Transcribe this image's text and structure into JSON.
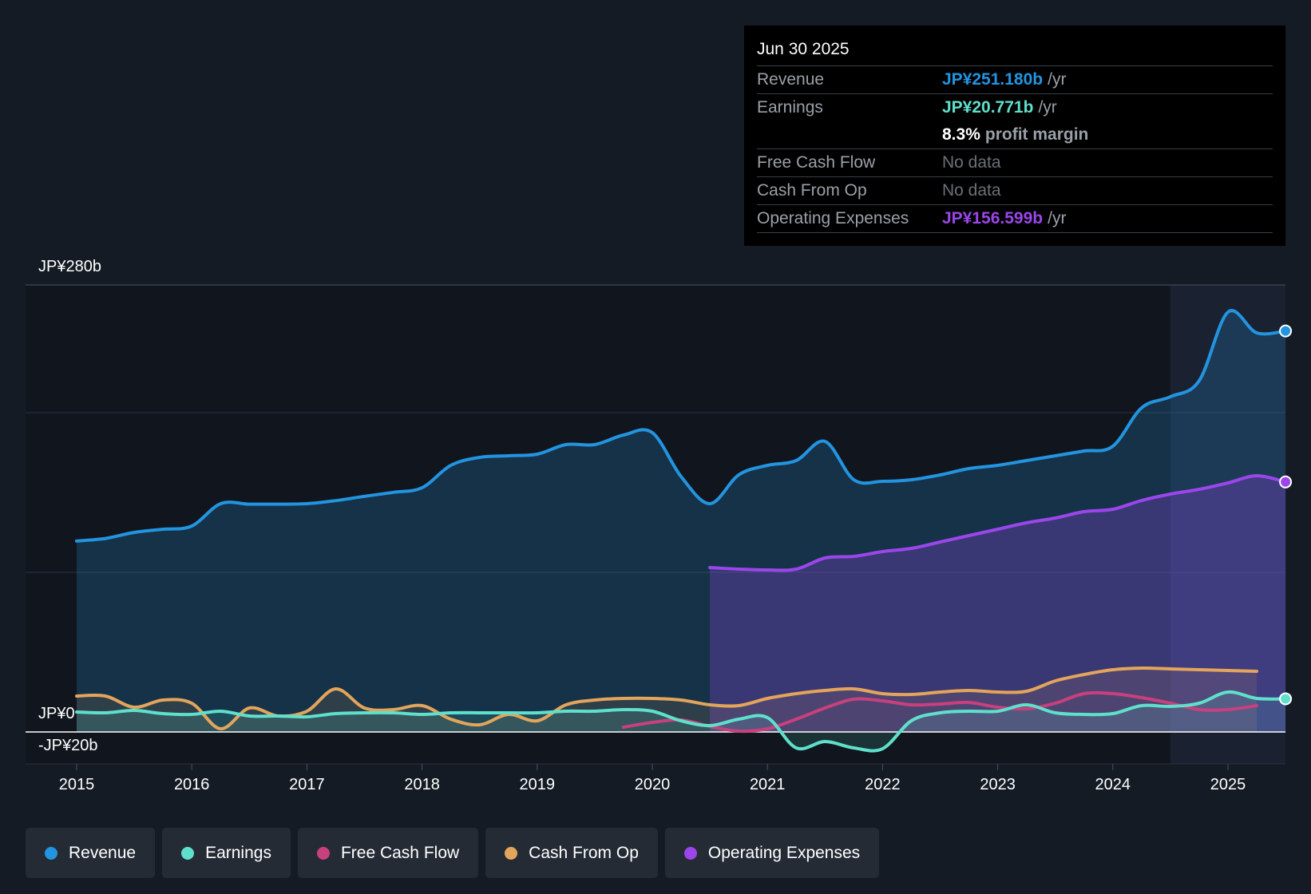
{
  "tooltip": {
    "date": "Jun 30 2025",
    "revenue_label": "Revenue",
    "revenue_value": "JP¥251.180b",
    "earnings_label": "Earnings",
    "earnings_value": "JP¥20.771b",
    "margin_value": "8.3%",
    "margin_text": "profit margin",
    "fcf_label": "Free Cash Flow",
    "fcf_value": "No data",
    "cfo_label": "Cash From Op",
    "cfo_value": "No data",
    "opex_label": "Operating Expenses",
    "opex_value": "JP¥156.599b",
    "unit": "/yr"
  },
  "legend": [
    {
      "label": "Revenue",
      "color": "#2394e0"
    },
    {
      "label": "Earnings",
      "color": "#5fe0cc"
    },
    {
      "label": "Free Cash Flow",
      "color": "#c8407e"
    },
    {
      "label": "Cash From Op",
      "color": "#e3a55b"
    },
    {
      "label": "Operating Expenses",
      "color": "#9b46ea"
    }
  ],
  "chart_data": {
    "type": "area",
    "title": "",
    "xlabel": "",
    "ylabel": "",
    "y_top_label": "JP¥280b",
    "y_zero_label": "JP¥0",
    "y_bottom_label": "-JP¥20b",
    "ylim": [
      -20,
      280
    ],
    "x_range": [
      2014.55,
      2025.5
    ],
    "x_ticks": [
      "2015",
      "2016",
      "2017",
      "2018",
      "2019",
      "2020",
      "2021",
      "2022",
      "2023",
      "2024",
      "2025"
    ],
    "forecast_start": 2024.5,
    "series": [
      {
        "name": "Revenue",
        "color": "#2394e0",
        "fill": true,
        "points": [
          [
            2015.0,
            119.6
          ],
          [
            2015.25,
            121.2
          ],
          [
            2015.5,
            125.0
          ],
          [
            2015.75,
            127.0
          ],
          [
            2016.0,
            129.0
          ],
          [
            2016.25,
            143.0
          ],
          [
            2016.5,
            142.7
          ],
          [
            2016.75,
            142.7
          ],
          [
            2017.0,
            143.0
          ],
          [
            2017.25,
            144.9
          ],
          [
            2017.5,
            147.6
          ],
          [
            2017.75,
            150.1
          ],
          [
            2018.0,
            153.0
          ],
          [
            2018.25,
            167.0
          ],
          [
            2018.5,
            172.0
          ],
          [
            2018.75,
            173.0
          ],
          [
            2019.0,
            174.0
          ],
          [
            2019.25,
            180.0
          ],
          [
            2019.5,
            180.0
          ],
          [
            2019.75,
            186.0
          ],
          [
            2020.0,
            187.5
          ],
          [
            2020.25,
            160.0
          ],
          [
            2020.5,
            143.0
          ],
          [
            2020.75,
            161.0
          ],
          [
            2021.0,
            167.0
          ],
          [
            2021.25,
            170.0
          ],
          [
            2021.5,
            182.0
          ],
          [
            2021.75,
            158.0
          ],
          [
            2022.0,
            157.0
          ],
          [
            2022.25,
            158.0
          ],
          [
            2022.5,
            161.0
          ],
          [
            2022.75,
            165.0
          ],
          [
            2023.0,
            167.0
          ],
          [
            2023.25,
            170.0
          ],
          [
            2023.5,
            173.0
          ],
          [
            2023.75,
            176.0
          ],
          [
            2024.0,
            179.0
          ],
          [
            2024.25,
            203.0
          ],
          [
            2024.5,
            210.0
          ],
          [
            2024.75,
            220.0
          ],
          [
            2025.0,
            263.0
          ],
          [
            2025.25,
            250.0
          ],
          [
            2025.5,
            251.18
          ]
        ]
      },
      {
        "name": "Operating Expenses",
        "color": "#9b46ea",
        "fill": true,
        "points": [
          [
            2020.5,
            103.0
          ],
          [
            2020.75,
            102.0
          ],
          [
            2021.0,
            101.5
          ],
          [
            2021.25,
            102.0
          ],
          [
            2021.5,
            109.0
          ],
          [
            2021.75,
            110.0
          ],
          [
            2022.0,
            113.0
          ],
          [
            2022.25,
            115.0
          ],
          [
            2022.5,
            119.0
          ],
          [
            2022.75,
            123.0
          ],
          [
            2023.0,
            127.0
          ],
          [
            2023.25,
            131.0
          ],
          [
            2023.5,
            134.0
          ],
          [
            2023.75,
            138.0
          ],
          [
            2024.0,
            139.5
          ],
          [
            2024.25,
            145.0
          ],
          [
            2024.5,
            149.0
          ],
          [
            2024.75,
            152.0
          ],
          [
            2025.0,
            156.0
          ],
          [
            2025.25,
            160.5
          ],
          [
            2025.5,
            156.6
          ]
        ]
      },
      {
        "name": "Cash From Op",
        "color": "#e3a55b",
        "fill": true,
        "points": [
          [
            2015.0,
            22.5
          ],
          [
            2015.25,
            22.5
          ],
          [
            2015.5,
            15.5
          ],
          [
            2015.75,
            20.0
          ],
          [
            2016.0,
            18.0
          ],
          [
            2016.25,
            2.0
          ],
          [
            2016.5,
            15.0
          ],
          [
            2016.75,
            10.0
          ],
          [
            2017.0,
            13.0
          ],
          [
            2017.25,
            27.0
          ],
          [
            2017.5,
            15.0
          ],
          [
            2017.75,
            14.0
          ],
          [
            2018.0,
            16.5
          ],
          [
            2018.25,
            8.0
          ],
          [
            2018.5,
            4.5
          ],
          [
            2018.75,
            11.0
          ],
          [
            2019.0,
            7.0
          ],
          [
            2019.25,
            17.0
          ],
          [
            2019.5,
            20.0
          ],
          [
            2019.75,
            21.0
          ],
          [
            2020.0,
            21.0
          ],
          [
            2020.25,
            20.0
          ],
          [
            2020.5,
            17.0
          ],
          [
            2020.75,
            16.5
          ],
          [
            2021.0,
            21.0
          ],
          [
            2021.25,
            24.0
          ],
          [
            2021.5,
            26.0
          ],
          [
            2021.75,
            27.0
          ],
          [
            2022.0,
            24.0
          ],
          [
            2022.25,
            23.5
          ],
          [
            2022.5,
            25.0
          ],
          [
            2022.75,
            26.0
          ],
          [
            2023.0,
            25.0
          ],
          [
            2023.25,
            25.5
          ],
          [
            2023.5,
            32.0
          ],
          [
            2023.75,
            36.0
          ],
          [
            2024.0,
            39.0
          ],
          [
            2024.25,
            40.0
          ],
          [
            2024.5,
            39.5
          ],
          [
            2024.75,
            39.0
          ],
          [
            2025.0,
            38.5
          ],
          [
            2025.25,
            38.0
          ]
        ]
      },
      {
        "name": "Earnings",
        "color": "#5fe0cc",
        "fill": true,
        "points": [
          [
            2015.0,
            12.5
          ],
          [
            2015.25,
            12.0
          ],
          [
            2015.5,
            13.5
          ],
          [
            2015.75,
            11.5
          ],
          [
            2016.0,
            11.0
          ],
          [
            2016.25,
            13.0
          ],
          [
            2016.5,
            10.0
          ],
          [
            2016.75,
            10.0
          ],
          [
            2017.0,
            9.5
          ],
          [
            2017.25,
            11.5
          ],
          [
            2017.5,
            12.0
          ],
          [
            2017.75,
            12.0
          ],
          [
            2018.0,
            11.0
          ],
          [
            2018.25,
            12.0
          ],
          [
            2018.5,
            12.0
          ],
          [
            2018.75,
            12.0
          ],
          [
            2019.0,
            12.0
          ],
          [
            2019.25,
            13.0
          ],
          [
            2019.5,
            13.0
          ],
          [
            2019.75,
            14.0
          ],
          [
            2020.0,
            13.0
          ],
          [
            2020.25,
            7.0
          ],
          [
            2020.5,
            4.0
          ],
          [
            2020.75,
            8.0
          ],
          [
            2021.0,
            9.0
          ],
          [
            2021.25,
            -10.0
          ],
          [
            2021.5,
            -6.0
          ],
          [
            2021.75,
            -10.0
          ],
          [
            2022.0,
            -10.5
          ],
          [
            2022.25,
            7.0
          ],
          [
            2022.5,
            12.0
          ],
          [
            2022.75,
            13.0
          ],
          [
            2023.0,
            13.0
          ],
          [
            2023.25,
            17.0
          ],
          [
            2023.5,
            12.0
          ],
          [
            2023.75,
            11.0
          ],
          [
            2024.0,
            11.5
          ],
          [
            2024.25,
            16.5
          ],
          [
            2024.5,
            16.0
          ],
          [
            2024.75,
            18.0
          ],
          [
            2025.0,
            25.0
          ],
          [
            2025.25,
            21.0
          ],
          [
            2025.5,
            20.77
          ]
        ]
      },
      {
        "name": "Free Cash Flow",
        "color": "#c8407e",
        "fill": false,
        "points": [
          [
            2019.75,
            3.0
          ],
          [
            2020.0,
            6.0
          ],
          [
            2020.25,
            7.5
          ],
          [
            2020.5,
            3.5
          ],
          [
            2020.75,
            0.5
          ],
          [
            2021.0,
            2.0
          ],
          [
            2021.25,
            8.0
          ],
          [
            2021.5,
            15.0
          ],
          [
            2021.75,
            20.5
          ],
          [
            2022.0,
            19.5
          ],
          [
            2022.25,
            17.0
          ],
          [
            2022.5,
            17.5
          ],
          [
            2022.75,
            18.5
          ],
          [
            2023.0,
            15.5
          ],
          [
            2023.25,
            14.5
          ],
          [
            2023.5,
            18.0
          ],
          [
            2023.75,
            24.0
          ],
          [
            2024.0,
            24.0
          ],
          [
            2024.25,
            21.5
          ],
          [
            2024.5,
            18.0
          ],
          [
            2024.75,
            14.0
          ],
          [
            2025.0,
            14.0
          ],
          [
            2025.25,
            16.5
          ]
        ]
      }
    ]
  }
}
